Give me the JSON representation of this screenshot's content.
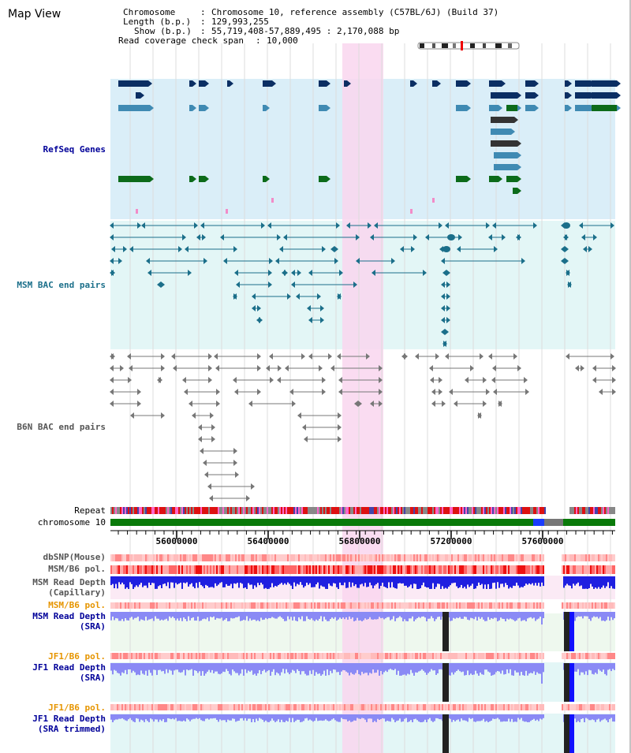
{
  "title": "Map View",
  "info": {
    "chromosome_key": "Chromosome",
    "chromosome_val": "Chromosome 10, reference assembly (C57BL/6J) (Build 37)",
    "length_key": "Length (b.p.)",
    "length_val": "129,993,255",
    "show_key": "Show (b.p.)",
    "show_val": "55,719,408-57,889,495 : 2,170,088 bp",
    "span_key": "Read coverage check span",
    "span_val": "10,000"
  },
  "tracks": {
    "refseq": "RefSeq Genes",
    "msm_bac": "MSM BAC end pairs",
    "b6n_bac": "B6N BAC end pairs",
    "repeat": "Repeat",
    "chromosome": "chromosome 10",
    "dbsnp": "dbSNP(Mouse)",
    "msm_b6_pol": "MSM/B6 pol.",
    "msm_depth_cap_1": "MSM Read Depth",
    "msm_depth_cap_2": "(Capillary)",
    "msm_b6_pol2": "MSM/B6 pol.",
    "msm_depth_sra_1": "MSM Read Depth",
    "msm_depth_sra_2": "(SRA)",
    "jf1_b6_pol": "JF1/B6 pol.",
    "jf1_depth_sra_1": "JF1 Read Depth",
    "jf1_depth_sra_2": "(SRA)",
    "jf1_b6_pol2": "JF1/B6 pol.",
    "jf1_trim_1": "JF1 Read Depth",
    "jf1_trim_2": "(SRA trimmed)"
  },
  "colors": {
    "refseq_bg": "#daeef8",
    "msm_bg": "#e3f6f6",
    "b6n_bg": "#f0f0f0",
    "highlight": "#f9d6ef",
    "gene_dark": "#0b2e63",
    "gene_mid": "#3f8ab3",
    "gene_green": "#0c6b1a",
    "msm_line": "#1b6f8a",
    "b6n_line": "#555555",
    "chrom_green": "#0a7a0a",
    "label_blue": "#000099",
    "label_orange": "#e69500"
  },
  "axis": {
    "ticks": [
      "56000000",
      "56400000",
      "56800000",
      "57200000",
      "57600000"
    ]
  }
}
